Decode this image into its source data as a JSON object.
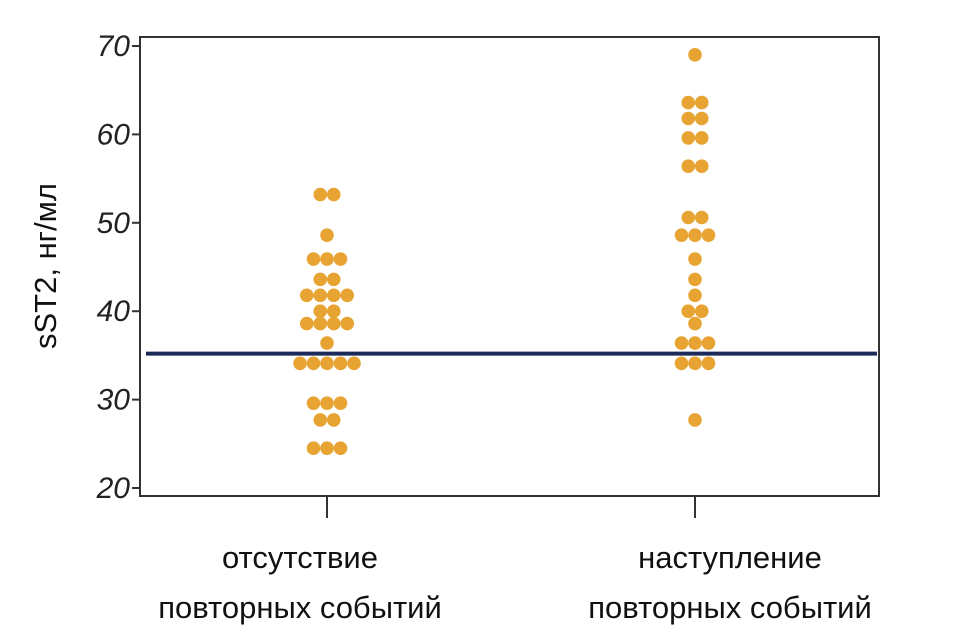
{
  "chart_data": {
    "type": "scatter",
    "ylabel": "sST2, нг/мл",
    "ylim": [
      20,
      70
    ],
    "yticks": [
      20,
      30,
      40,
      50,
      60,
      70
    ],
    "categories": [
      {
        "lines": [
          "отсутствие",
          "повторных событий"
        ]
      },
      {
        "lines": [
          "наступление",
          "повторных событий"
        ]
      }
    ],
    "reference_line": {
      "y": 35.2,
      "color": "#1c2a5a"
    },
    "point_color": "#e8a432",
    "grid": false,
    "groups": [
      {
        "category_index": 0,
        "points": [
          {
            "y": 53.2,
            "n": 2
          },
          {
            "y": 48.6,
            "n": 1
          },
          {
            "y": 45.9,
            "n": 3
          },
          {
            "y": 43.6,
            "n": 2
          },
          {
            "y": 41.8,
            "n": 4
          },
          {
            "y": 40.0,
            "n": 2
          },
          {
            "y": 38.6,
            "n": 4
          },
          {
            "y": 36.4,
            "n": 1
          },
          {
            "y": 34.1,
            "n": 5
          },
          {
            "y": 29.6,
            "n": 3
          },
          {
            "y": 27.7,
            "n": 2
          },
          {
            "y": 24.5,
            "n": 3
          }
        ]
      },
      {
        "category_index": 1,
        "points": [
          {
            "y": 69.0,
            "n": 1
          },
          {
            "y": 63.6,
            "n": 2
          },
          {
            "y": 61.8,
            "n": 2
          },
          {
            "y": 59.6,
            "n": 2
          },
          {
            "y": 56.4,
            "n": 2
          },
          {
            "y": 50.6,
            "n": 2
          },
          {
            "y": 48.6,
            "n": 3
          },
          {
            "y": 45.9,
            "n": 1
          },
          {
            "y": 43.6,
            "n": 1
          },
          {
            "y": 41.8,
            "n": 1
          },
          {
            "y": 40.0,
            "n": 2
          },
          {
            "y": 38.6,
            "n": 1
          },
          {
            "y": 36.4,
            "n": 3
          },
          {
            "y": 34.1,
            "n": 3
          },
          {
            "y": 27.7,
            "n": 1
          }
        ]
      }
    ]
  }
}
